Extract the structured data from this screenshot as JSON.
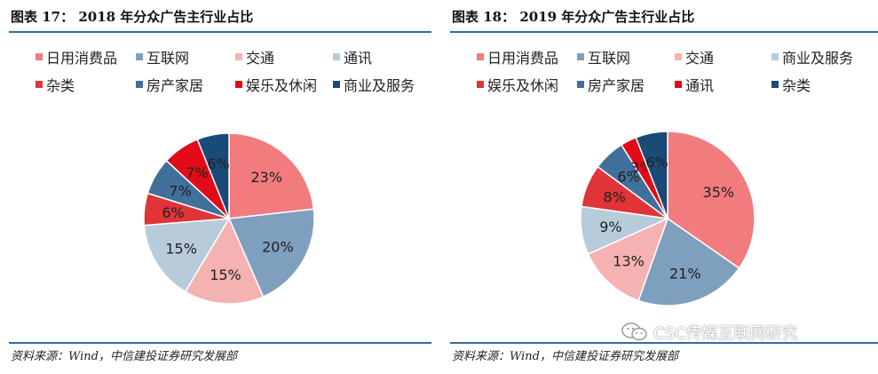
{
  "colors": {
    "rule": "#2e6da4",
    "daily": "#f27b7e",
    "internet": "#7f9fbf",
    "transport": "#f5b2b2",
    "telecom": "#b8cbdb",
    "misc": "#e03438",
    "realestate": "#41709b",
    "entertainment": "#e30b17",
    "business": "#1a4a76"
  },
  "chart_data": [
    {
      "type": "pie",
      "title": "图表 17： 2018 年分众广告主行业占比",
      "source": "资料来源：Wind，中信建投证券研究发展部",
      "slices": [
        {
          "label": "日用消费品",
          "value": 23,
          "text": "23%",
          "color_key": "daily"
        },
        {
          "label": "互联网",
          "value": 20,
          "text": "20%",
          "color_key": "internet"
        },
        {
          "label": "交通",
          "value": 15,
          "text": "15%",
          "color_key": "transport"
        },
        {
          "label": "通讯",
          "value": 15,
          "text": "15%",
          "color_key": "telecom"
        },
        {
          "label": "杂类",
          "value": 6,
          "text": "6%",
          "color_key": "misc"
        },
        {
          "label": "房产家居",
          "value": 7,
          "text": "7%",
          "color_key": "realestate"
        },
        {
          "label": "娱乐及休闲",
          "value": 7,
          "text": "7%",
          "color_key": "entertainment"
        },
        {
          "label": "商业及服务",
          "value": 6,
          "text": "6%",
          "color_key": "business"
        }
      ]
    },
    {
      "type": "pie",
      "title": "图表 18： 2019 年分众广告主行业占比",
      "source": "资料来源：Wind，中信建投证券研究发展部",
      "slices": [
        {
          "label": "日用消费品",
          "value": 35,
          "text": "35%",
          "color_key": "daily"
        },
        {
          "label": "互联网",
          "value": 21,
          "text": "21%",
          "color_key": "internet"
        },
        {
          "label": "交通",
          "value": 13,
          "text": "13%",
          "color_key": "transport"
        },
        {
          "label": "商业及服务",
          "value": 9,
          "text": "9%",
          "color_key": "telecom"
        },
        {
          "label": "娱乐及休闲",
          "value": 8,
          "text": "8%",
          "color_key": "misc"
        },
        {
          "label": "房产家居",
          "value": 6,
          "text": "6%",
          "color_key": "realestate"
        },
        {
          "label": "通讯",
          "value": 3,
          "text": "3%",
          "color_key": "entertainment"
        },
        {
          "label": "杂类",
          "value": 6,
          "text": "6%",
          "color_key": "business"
        }
      ]
    }
  ],
  "watermark": {
    "text": "CSC传媒互联网研究",
    "icon": "wechat-icon"
  }
}
